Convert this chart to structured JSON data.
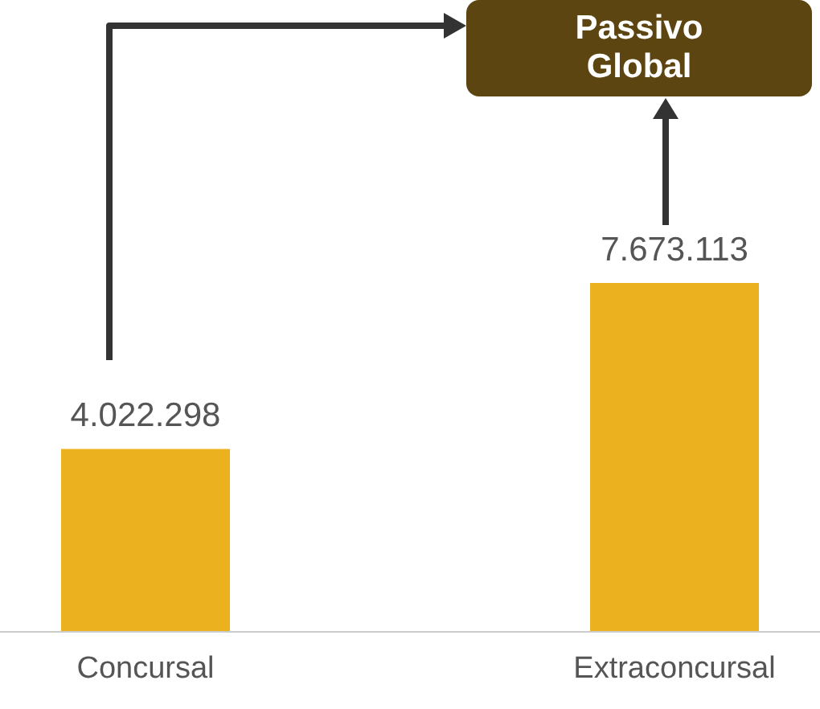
{
  "chart_data": {
    "type": "bar",
    "categories": [
      "Concursal",
      "Extraconcursal"
    ],
    "values": [
      4022298,
      7673113
    ],
    "value_labels": [
      "4.022.298",
      "7.673.113"
    ],
    "color": "#ecb11f",
    "annotations": [
      "Passivo Global"
    ]
  }
}
